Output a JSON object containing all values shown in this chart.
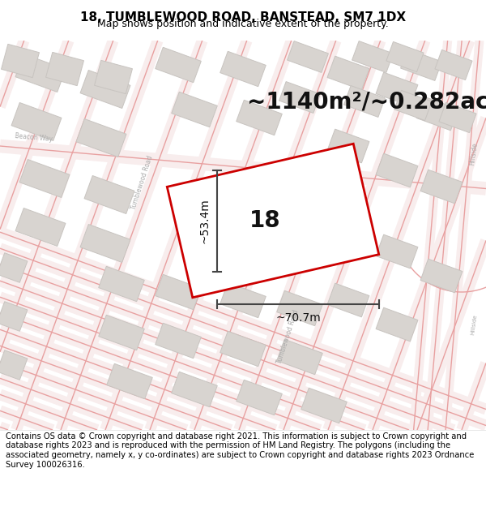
{
  "title": "18, TUMBLEWOOD ROAD, BANSTEAD, SM7 1DX",
  "subtitle": "Map shows position and indicative extent of the property.",
  "area_text": "~1140m²/~0.282ac.",
  "width_label": "~70.7m",
  "height_label": "~53.4m",
  "number_label": "18",
  "footer_text": "Contains OS data © Crown copyright and database right 2021. This information is subject to Crown copyright and database rights 2023 and is reproduced with the permission of HM Land Registry. The polygons (including the associated geometry, namely x, y co-ordinates) are subject to Crown copyright and database rights 2023 Ordnance Survey 100026316.",
  "map_bg": "#f7f4f2",
  "road_line_color": "#f0a0a0",
  "road_fill_color": "#f5e8e8",
  "block_color": "#d8d4d0",
  "block_edge_color": "#c8c4c0",
  "plot_color": "#cc0000",
  "dim_color": "#444444",
  "title_fontsize": 11,
  "subtitle_fontsize": 9,
  "area_fontsize": 20,
  "dim_label_fontsize": 10,
  "number_fontsize": 20,
  "footer_fontsize": 7.2,
  "road_lw": 1.2,
  "road_band_lw": 8
}
